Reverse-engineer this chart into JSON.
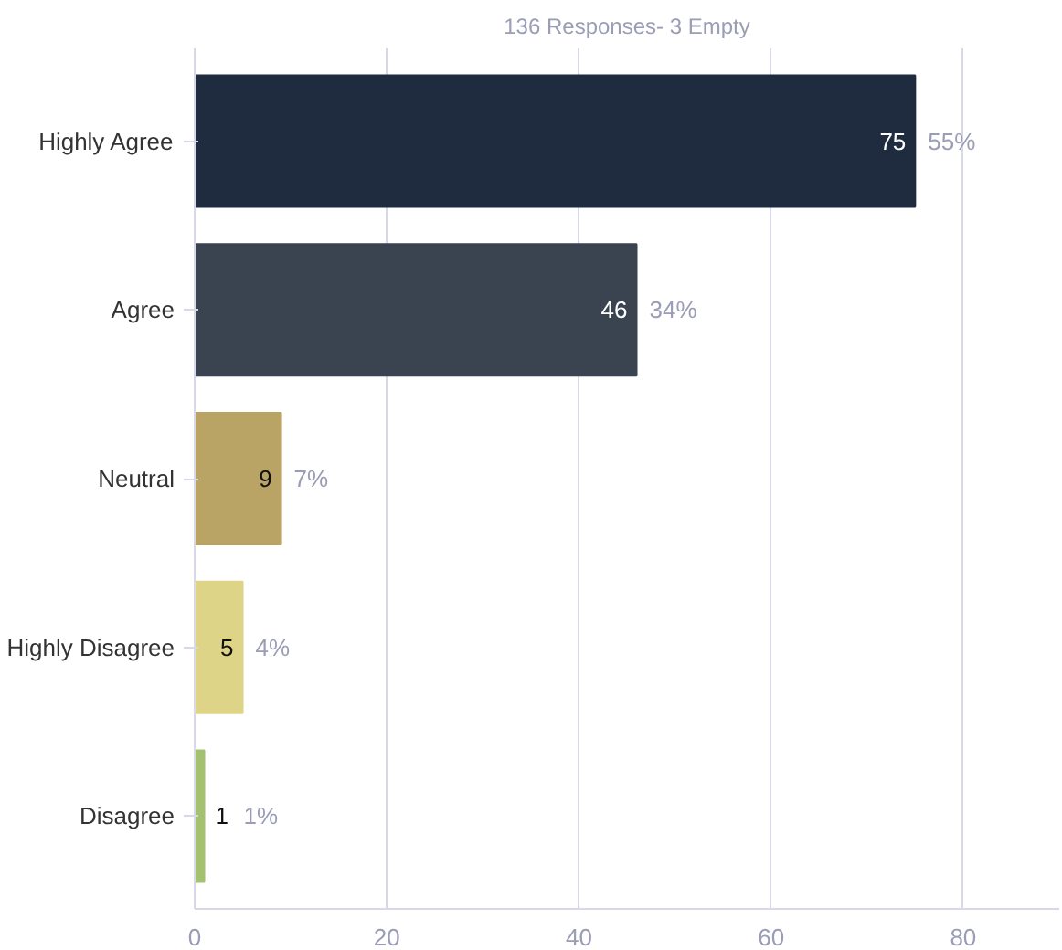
{
  "chart_data": {
    "type": "bar",
    "orientation": "horizontal",
    "title": "136 Responses- 3 Empty",
    "categories": [
      "Highly Agree",
      "Agree",
      "Neutral",
      "Highly Disagree",
      "Disagree"
    ],
    "values": [
      75,
      46,
      9,
      5,
      1
    ],
    "colors": [
      "#1f2b3e",
      "#3a4350",
      "#b9a465",
      "#ddd488",
      "#a3c170"
    ],
    "data_labels": true,
    "annotations": [
      {
        "text": "55%",
        "x": 75,
        "y": "Highly Agree"
      },
      {
        "text": "34%",
        "x": 46,
        "y": "Agree"
      },
      {
        "text": "7%",
        "x": 9,
        "y": "Neutral"
      },
      {
        "text": "4%",
        "x": 5,
        "y": "Highly Disagree"
      },
      {
        "text": "1%",
        "x": 1,
        "y": "Disagree"
      }
    ],
    "xlim": [
      0,
      90
    ],
    "xticks": [
      0,
      20,
      40,
      60,
      80
    ],
    "grid": "x"
  }
}
